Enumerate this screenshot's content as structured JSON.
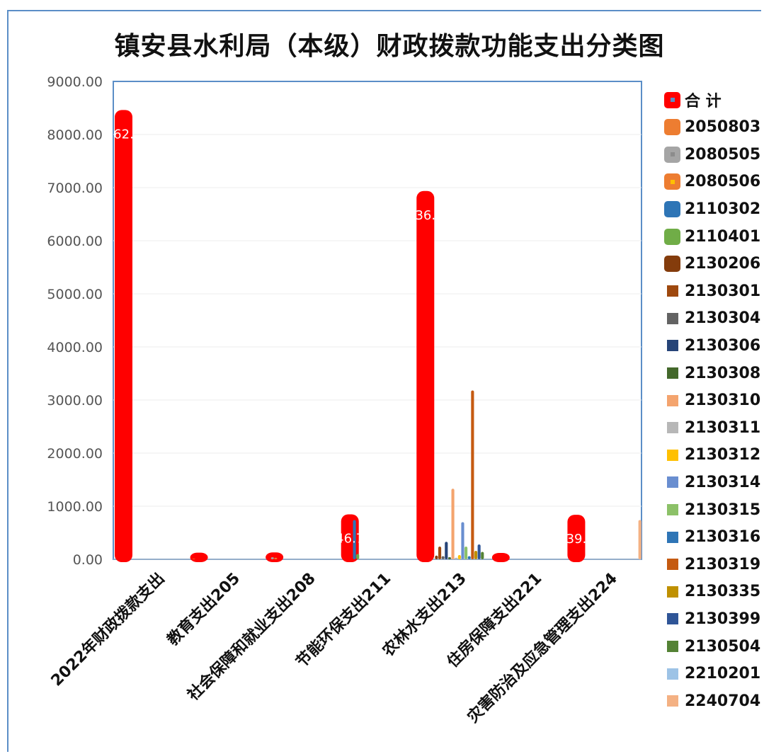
{
  "chart_data": {
    "type": "bar",
    "title": "镇安县水利局（本级）财政拨款功能支出分类图",
    "xlabel": "",
    "ylabel": "",
    "ylim": [
      0,
      9000
    ],
    "yticks": [
      "0.00",
      "1000.00",
      "2000.00",
      "3000.00",
      "4000.00",
      "5000.00",
      "6000.00",
      "7000.00",
      "8000.00",
      "9000.00"
    ],
    "grid": true,
    "legend": "right",
    "categories": [
      "2022年财政拨款支出",
      "教育支出205",
      "社会保障和就业支出208",
      "节能环保支出211",
      "农林水支出213",
      "住房保障支出221",
      "灾害防治及应急管理支出224"
    ],
    "series": [
      {
        "name": "合 计",
        "color": "#ff0000",
        "values": [
          8462,
          125,
          130,
          846.7,
          6936,
          120,
          839
        ],
        "labels": [
          "62.",
          "",
          "",
          "46.7",
          "36.",
          "",
          "39."
        ]
      },
      {
        "name": "2050803",
        "color": "#ed7d31",
        "values": [
          0,
          12,
          0,
          0,
          0,
          0,
          0
        ]
      },
      {
        "name": "2080505",
        "color": "#a5a5a5",
        "values": [
          0,
          0,
          40,
          0,
          0,
          0,
          0
        ]
      },
      {
        "name": "2080506",
        "color": "#ed7d31",
        "values": [
          0,
          0,
          30,
          0,
          0,
          0,
          0
        ]
      },
      {
        "name": "2110302",
        "color": "#2e75b6",
        "values": [
          0,
          0,
          0,
          740,
          0,
          0,
          0
        ]
      },
      {
        "name": "2110401",
        "color": "#70ad47",
        "values": [
          0,
          0,
          0,
          100,
          0,
          0,
          0
        ]
      },
      {
        "name": "2130206",
        "color": "#843c0c",
        "values": [
          0,
          0,
          0,
          0,
          70,
          0,
          0
        ]
      },
      {
        "name": "2130301",
        "color": "#9e480e",
        "values": [
          0,
          0,
          0,
          0,
          240,
          0,
          0
        ]
      },
      {
        "name": "2130304",
        "color": "#636363",
        "values": [
          0,
          0,
          0,
          0,
          60,
          0,
          0
        ]
      },
      {
        "name": "2130306",
        "color": "#264478",
        "values": [
          0,
          0,
          0,
          0,
          330,
          0,
          0
        ]
      },
      {
        "name": "2130308",
        "color": "#43682b",
        "values": [
          0,
          0,
          0,
          0,
          40,
          0,
          0
        ]
      },
      {
        "name": "2130310",
        "color": "#f4a46e",
        "values": [
          0,
          0,
          0,
          0,
          1330,
          0,
          0
        ]
      },
      {
        "name": "2130311",
        "color": "#b7b7b7",
        "values": [
          0,
          0,
          0,
          0,
          30,
          0,
          0
        ]
      },
      {
        "name": "2130312",
        "color": "#ffc000",
        "values": [
          0,
          0,
          0,
          0,
          80,
          0,
          0
        ]
      },
      {
        "name": "2130314",
        "color": "#698ed0",
        "values": [
          0,
          0,
          0,
          0,
          700,
          0,
          0
        ]
      },
      {
        "name": "2130315",
        "color": "#8cc168",
        "values": [
          0,
          0,
          0,
          0,
          240,
          0,
          0
        ]
      },
      {
        "name": "2130316",
        "color": "#2e75b6",
        "values": [
          0,
          0,
          0,
          0,
          60,
          0,
          0
        ]
      },
      {
        "name": "2130319",
        "color": "#c55a11",
        "values": [
          0,
          0,
          0,
          0,
          3180,
          0,
          0
        ]
      },
      {
        "name": "2130335",
        "color": "#bf9000",
        "values": [
          0,
          0,
          0,
          0,
          160,
          0,
          0
        ]
      },
      {
        "name": "2130399",
        "color": "#2f5597",
        "values": [
          0,
          0,
          0,
          0,
          280,
          0,
          0
        ]
      },
      {
        "name": "2130504",
        "color": "#548235",
        "values": [
          0,
          0,
          0,
          0,
          140,
          0,
          0
        ]
      },
      {
        "name": "2210201",
        "color": "#9dc3e6",
        "values": [
          0,
          0,
          0,
          0,
          0,
          0,
          0
        ]
      },
      {
        "name": "2240704",
        "color": "#f4b183",
        "values": [
          0,
          0,
          0,
          0,
          0,
          0,
          740
        ]
      }
    ]
  }
}
